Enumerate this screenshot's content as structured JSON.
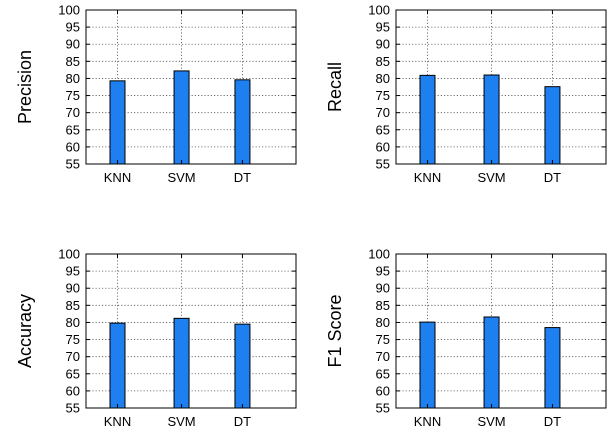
{
  "chart_data": [
    {
      "type": "bar",
      "ylabel": "Precision",
      "categories": [
        "KNN",
        "SVM",
        "DT"
      ],
      "values": [
        79.3,
        82.2,
        79.6
      ],
      "ylim": [
        55,
        100
      ],
      "yticks": [
        55,
        60,
        65,
        70,
        75,
        80,
        85,
        90,
        95,
        100
      ],
      "grid": true,
      "bar_color": "#1e7ff0"
    },
    {
      "type": "bar",
      "ylabel": "Recall",
      "categories": [
        "KNN",
        "SVM",
        "DT"
      ],
      "values": [
        80.9,
        81.0,
        77.6
      ],
      "ylim": [
        55,
        100
      ],
      "yticks": [
        55,
        60,
        65,
        70,
        75,
        80,
        85,
        90,
        95,
        100
      ],
      "grid": true,
      "bar_color": "#1e7ff0"
    },
    {
      "type": "bar",
      "ylabel": "Accuracy",
      "categories": [
        "KNN",
        "SVM",
        "DT"
      ],
      "values": [
        79.8,
        81.2,
        79.5
      ],
      "ylim": [
        55,
        100
      ],
      "yticks": [
        55,
        60,
        65,
        70,
        75,
        80,
        85,
        90,
        95,
        100
      ],
      "grid": true,
      "bar_color": "#1e7ff0"
    },
    {
      "type": "bar",
      "ylabel": "F1 Score",
      "categories": [
        "KNN",
        "SVM",
        "DT"
      ],
      "values": [
        80.1,
        81.6,
        78.5
      ],
      "ylim": [
        55,
        100
      ],
      "yticks": [
        55,
        60,
        65,
        70,
        75,
        80,
        85,
        90,
        95,
        100
      ],
      "grid": true,
      "bar_color": "#1e7ff0"
    }
  ]
}
